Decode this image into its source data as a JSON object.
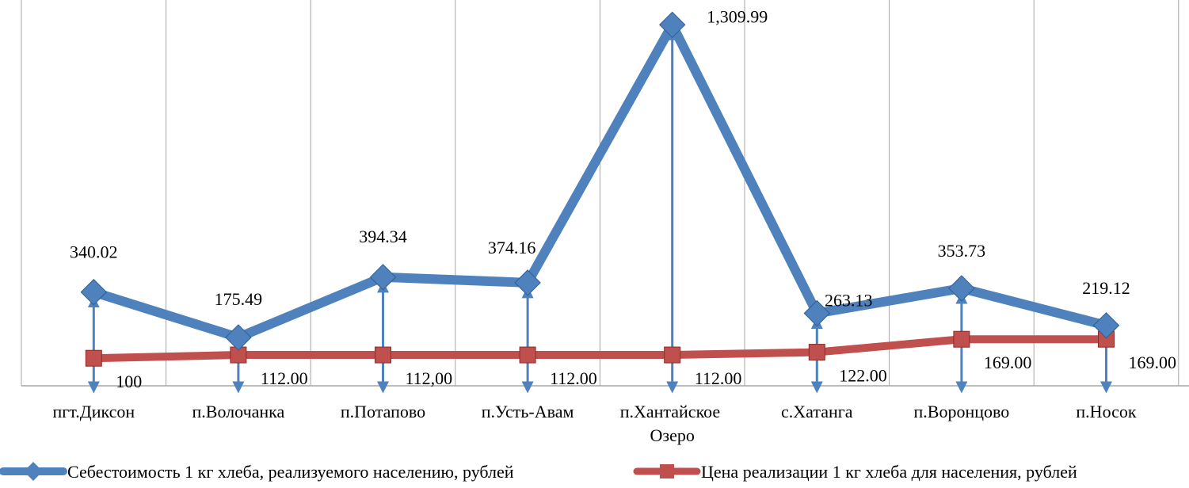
{
  "chart_data": {
    "type": "line",
    "categories": [
      "пгт.Диксон",
      "п.Волочанка",
      "п.Потапово",
      "п.Усть-Авам",
      "п.Хантайское Озеро",
      "с.Хатанга",
      "п.Воронцово",
      "п.Носок"
    ],
    "series": [
      {
        "name": "Себестоимость 1 кг хлеба, реализуемого населению, рублей",
        "color": "#4f81bd",
        "values": [
          340.02,
          175.49,
          394.34,
          374.16,
          1309.99,
          263.13,
          353.73,
          219.12
        ],
        "value_labels": [
          "340.02",
          "175.49",
          "394.34",
          "374.16",
          "1,309.99",
          "263.13",
          "353.73",
          "219.12"
        ]
      },
      {
        "name": "Цена реализации 1 кг хлеба для населения, рублей",
        "color": "#c0504d",
        "values": [
          100,
          112,
          112,
          112,
          112,
          122,
          169,
          169
        ],
        "value_labels": [
          "100",
          "112.00",
          "112,00",
          "112.00",
          "112.00",
          "122.00",
          "169.00",
          "169.00"
        ]
      }
    ],
    "ylim": [
      0,
      1400
    ],
    "grid": true,
    "legend": "bottom"
  }
}
